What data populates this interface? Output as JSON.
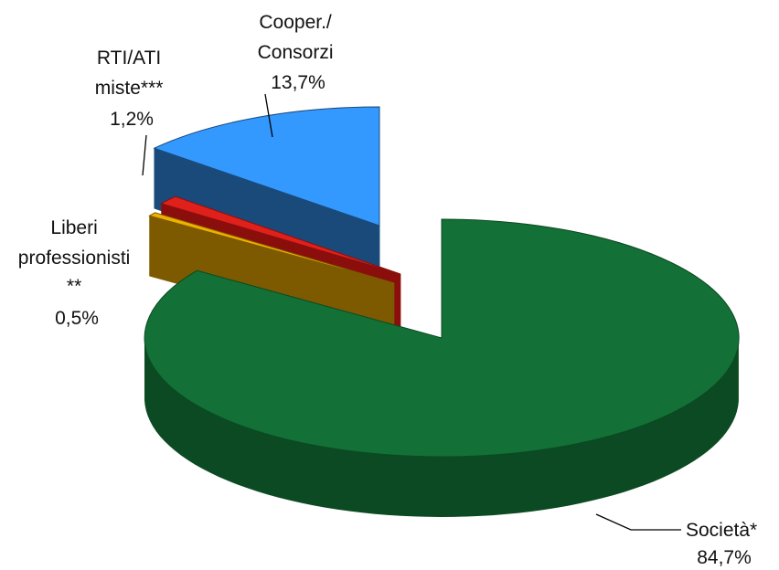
{
  "chart_data": {
    "type": "pie",
    "style": "3d-exploded",
    "title": "",
    "slices": [
      {
        "name_lines": [
          "Società*"
        ],
        "label": "84,7%",
        "value": 84.7,
        "color": "#137036",
        "color_side": "#0b4a22"
      },
      {
        "name_lines": [
          "Liberi",
          "professionisti",
          "**"
        ],
        "label": "0,5%",
        "value": 0.5,
        "color": "#f0b000",
        "color_side": "#7d5a00"
      },
      {
        "name_lines": [
          "RTI/ATI",
          "miste***"
        ],
        "label": "1,2%",
        "value": 1.2,
        "color": "#e0201b",
        "color_side": "#8a0f0c"
      },
      {
        "name_lines": [
          "Cooper./",
          "Consorzi"
        ],
        "label": "13,7%",
        "value": 13.7,
        "color": "#3399ff",
        "color_side": "#1a4a7a"
      }
    ]
  }
}
